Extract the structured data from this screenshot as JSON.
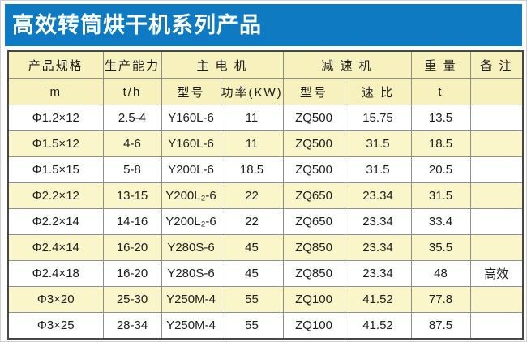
{
  "banner": {
    "title": "高效转筒烘干机系列产品"
  },
  "colors": {
    "banner-blue": "#0d7ac1",
    "header-yellow": "#f7f1bd",
    "alt-row-yellow": "#fbf6c9"
  },
  "table": {
    "head": {
      "spec": "产品规格",
      "capacity": "生产能力",
      "main_motor": "主 电 机",
      "reducer": "减 速 机",
      "weight": "重 量",
      "remark": "备 注",
      "spec_unit": "m",
      "capacity_unit": "t/h",
      "motor_model": "型号",
      "motor_power": "功率(KW)",
      "reducer_model": "型号",
      "reducer_ratio": "速 比",
      "weight_unit": "t",
      "remark_unit": ""
    },
    "rows": [
      {
        "spec": "Φ1.2×12",
        "capacity": "2.5-4",
        "motor_model": "Y160L-6",
        "motor_power": "11",
        "reducer_model": "ZQ500",
        "ratio": "15.75",
        "weight": "13.5",
        "remark": ""
      },
      {
        "spec": "Φ1.5×12",
        "capacity": "4-6",
        "motor_model": "Y160L-6",
        "motor_power": "11",
        "reducer_model": "ZQ500",
        "ratio": "31.5",
        "weight": "18.5",
        "remark": ""
      },
      {
        "spec": "Φ1.5×15",
        "capacity": "5-8",
        "motor_model": "Y200L-6",
        "motor_power": "18.5",
        "reducer_model": "ZQ500",
        "ratio": "31.5",
        "weight": "20.5",
        "remark": ""
      },
      {
        "spec": "Φ2.2×12",
        "capacity": "13-15",
        "motor_model": "Y200L₂-6",
        "motor_power": "22",
        "reducer_model": "ZQ650",
        "ratio": "23.34",
        "weight": "31.5",
        "remark": ""
      },
      {
        "spec": "Φ2.2×14",
        "capacity": "14-16",
        "motor_model": "Y200L₂-6",
        "motor_power": "22",
        "reducer_model": "ZQ650",
        "ratio": "23.34",
        "weight": "33.4",
        "remark": ""
      },
      {
        "spec": "Φ2.4×14",
        "capacity": "16-20",
        "motor_model": "Y280S-6",
        "motor_power": "45",
        "reducer_model": "ZQ850",
        "ratio": "23.34",
        "weight": "35.5",
        "remark": ""
      },
      {
        "spec": "Φ2.4×18",
        "capacity": "16-20",
        "motor_model": "Y280S-6",
        "motor_power": "45",
        "reducer_model": "ZQ850",
        "ratio": "23.34",
        "weight": "48",
        "remark": "高效"
      },
      {
        "spec": "Φ3×20",
        "capacity": "25-30",
        "motor_model": "Y250M-4",
        "motor_power": "55",
        "reducer_model": "ZQ100",
        "ratio": "41.52",
        "weight": "77.8",
        "remark": ""
      },
      {
        "spec": "Φ3×25",
        "capacity": "28-34",
        "motor_model": "Y250M-4",
        "motor_power": "55",
        "reducer_model": "ZQ100",
        "ratio": "41.52",
        "weight": "87.5",
        "remark": ""
      }
    ]
  }
}
